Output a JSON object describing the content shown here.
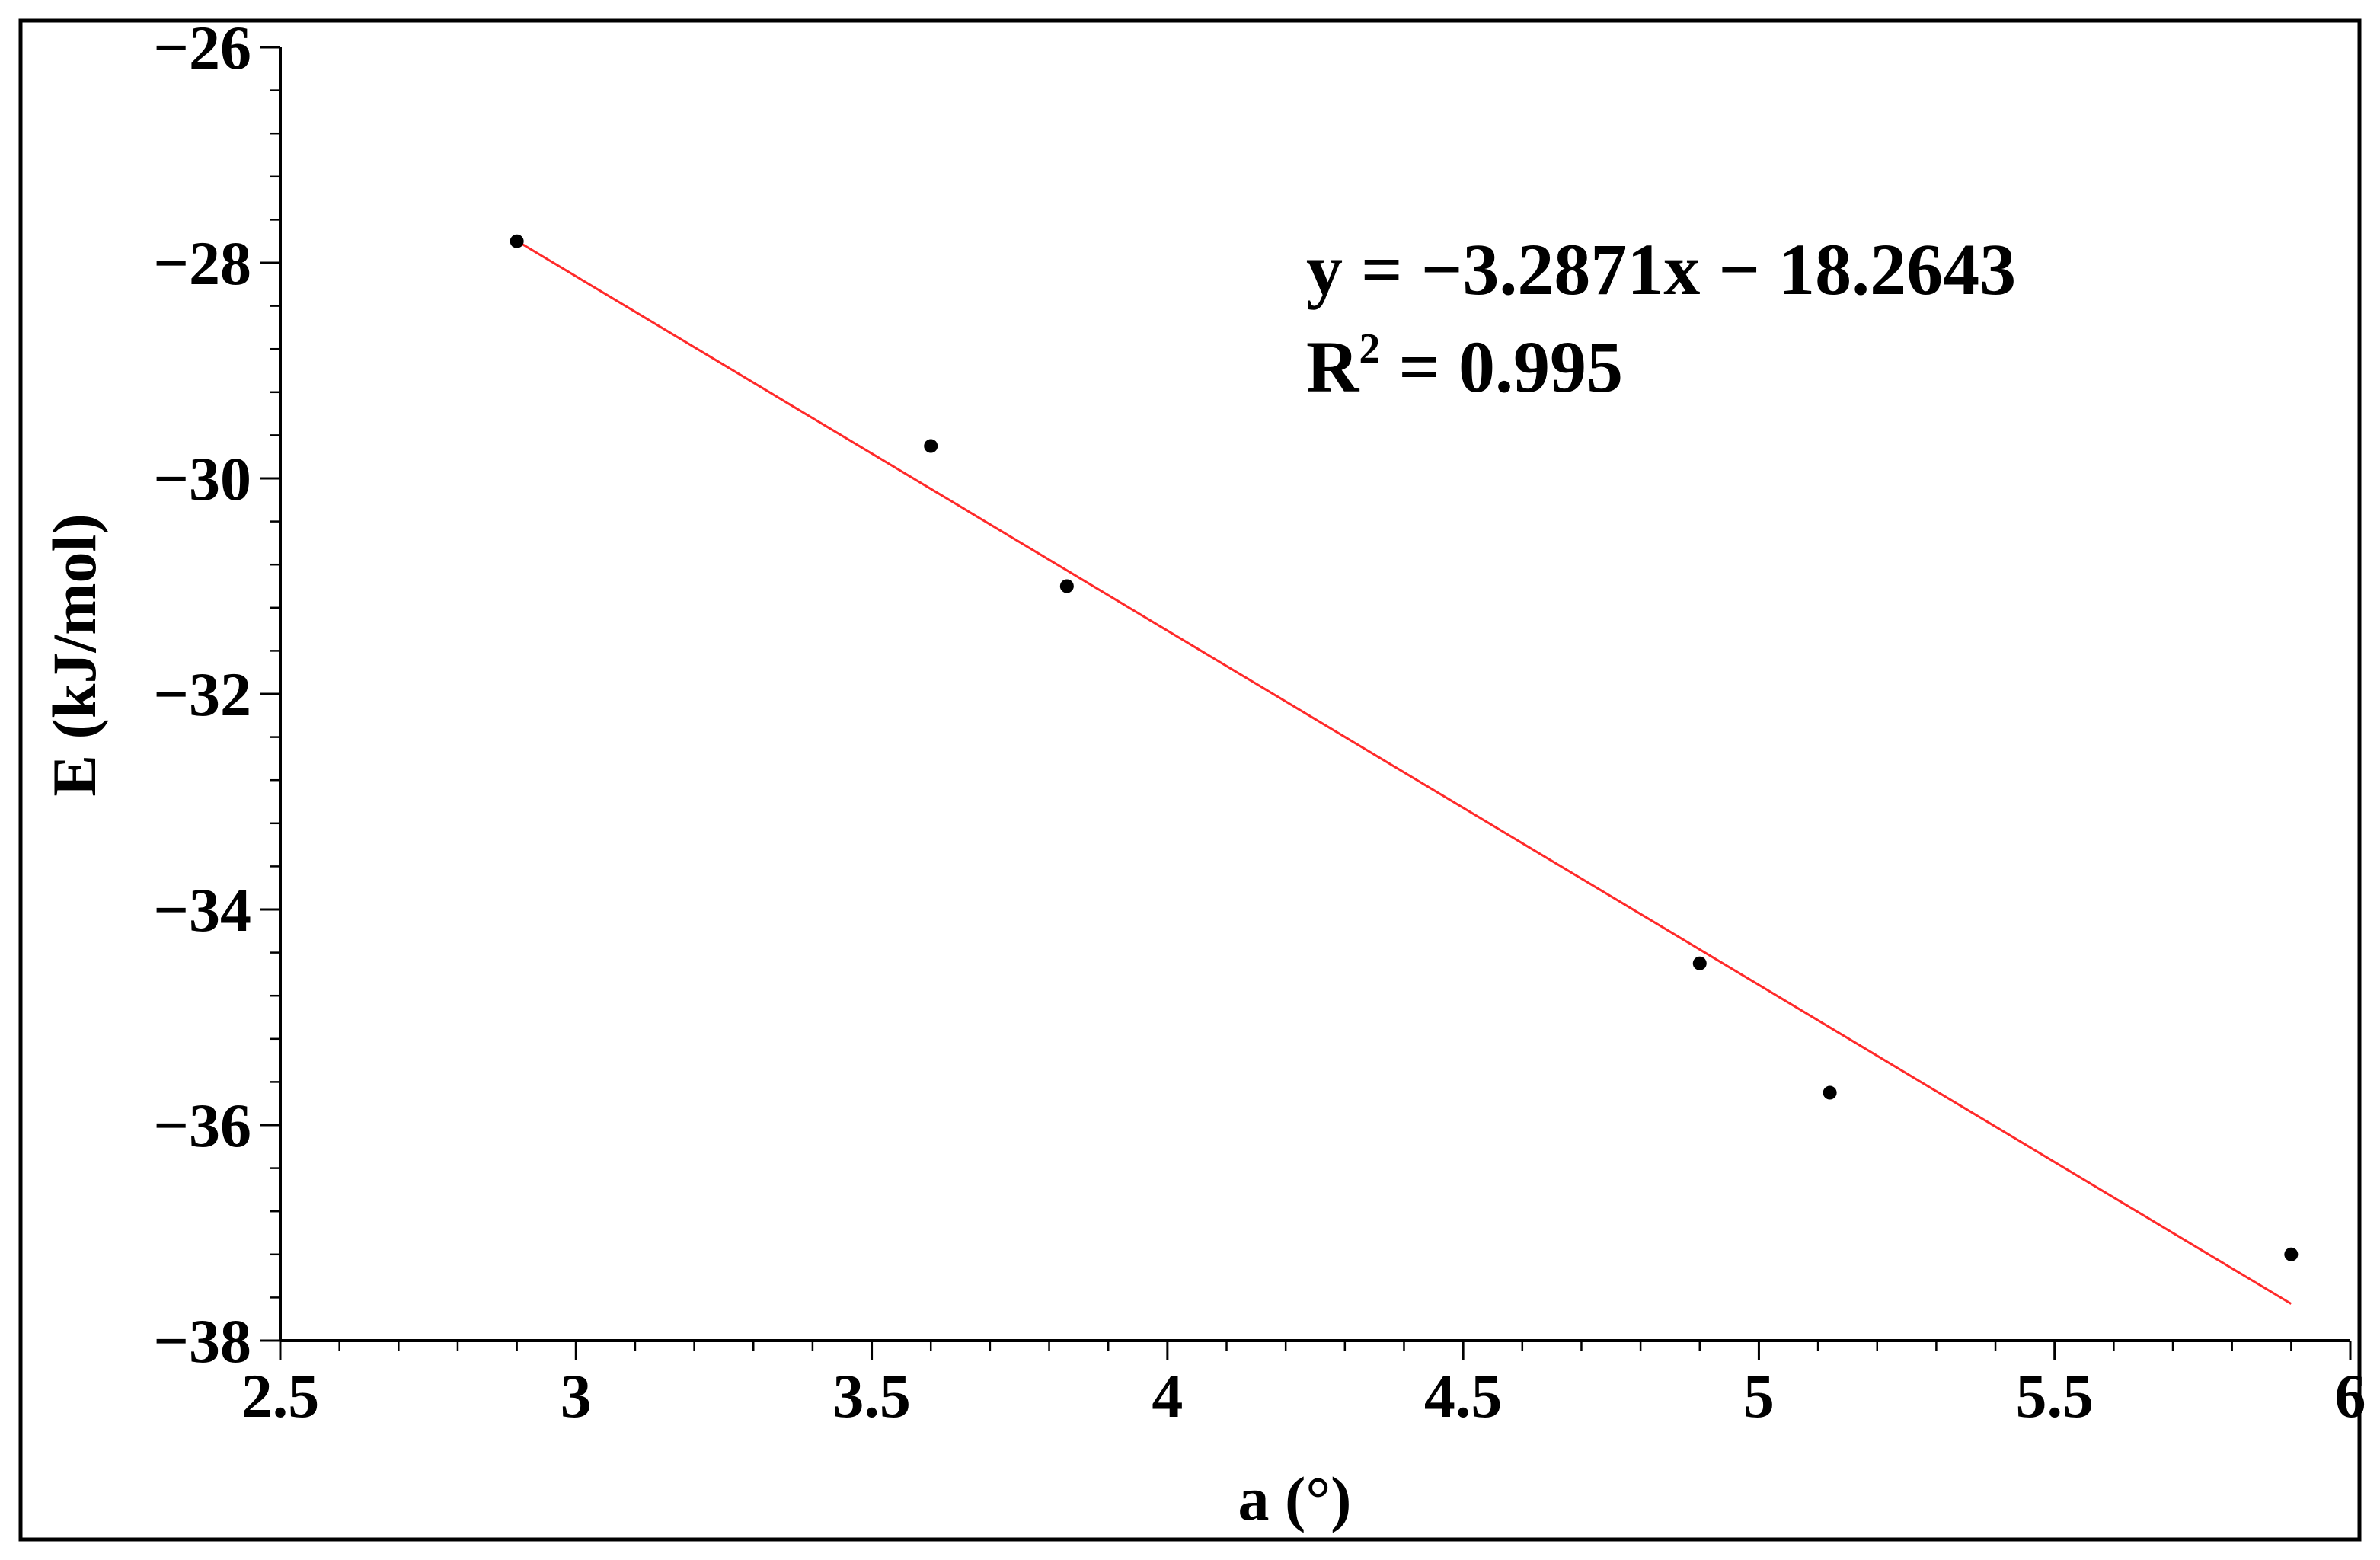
{
  "chart_data": {
    "type": "scatter",
    "xlabel": "a (°)",
    "ylabel": "E (kJ/mol)",
    "xlim": [
      2.5,
      6
    ],
    "ylim": [
      -38,
      -26
    ],
    "x_ticks": [
      "2.5",
      "3",
      "3.5",
      "4",
      "4.5",
      "5",
      "5.5",
      "6"
    ],
    "y_ticks": [
      "−26",
      "−28",
      "−30",
      "−32",
      "−34",
      "−36",
      "−38"
    ],
    "series": [
      {
        "points": [
          {
            "x": 2.9,
            "y": -27.8
          },
          {
            "x": 3.6,
            "y": -29.7
          },
          {
            "x": 3.83,
            "y": -31.0
          },
          {
            "x": 4.9,
            "y": -34.5
          },
          {
            "x": 5.12,
            "y": -35.7
          },
          {
            "x": 5.9,
            "y": -37.2
          }
        ]
      }
    ],
    "trendline": {
      "slope": -3.2871,
      "intercept": -18.2643,
      "x_range": [
        2.9,
        5.9
      ]
    },
    "annotation": {
      "equation": "y = −3.2871x − 18.2643",
      "r2_label": "R",
      "r2_exp": "2",
      "r2_value": " = 0.995"
    },
    "grid": false,
    "colors": {
      "trendline": "#ff2a2a",
      "points": "#000000",
      "axes": "#000000"
    }
  }
}
